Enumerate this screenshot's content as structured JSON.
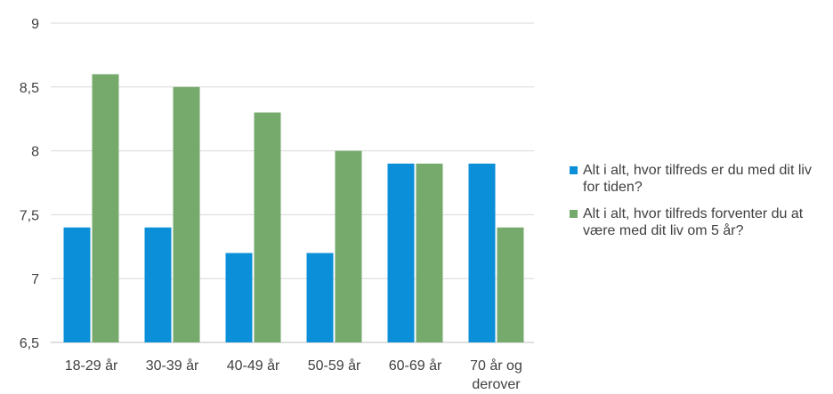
{
  "chart_data": {
    "type": "bar",
    "categories": [
      [
        "18-29 år"
      ],
      [
        "30-39 år"
      ],
      [
        "40-49 år"
      ],
      [
        "50-59 år"
      ],
      [
        "60-69 år"
      ],
      [
        "70 år og",
        "derover"
      ]
    ],
    "series": [
      {
        "name": "Alt i alt, hvor tilfreds er du med dit liv for tiden?",
        "color": "#0a8fd8",
        "values": [
          7.4,
          7.4,
          7.2,
          7.2,
          7.9,
          7.9
        ]
      },
      {
        "name": "Alt i alt, hvor tilfreds forventer du at være med dit liv om 5 år?",
        "color": "#76aa6c",
        "values": [
          8.6,
          8.5,
          8.3,
          8.0,
          7.9,
          7.4
        ]
      }
    ],
    "yticks": [
      "6,5",
      "7",
      "7,5",
      "8",
      "8,5",
      "9"
    ],
    "ytick_values": [
      6.5,
      7,
      7.5,
      8,
      8.5,
      9
    ],
    "ylim": [
      6.5,
      9
    ],
    "grid": true,
    "legend_position": "right",
    "title": "",
    "xlabel": "",
    "ylabel": ""
  }
}
